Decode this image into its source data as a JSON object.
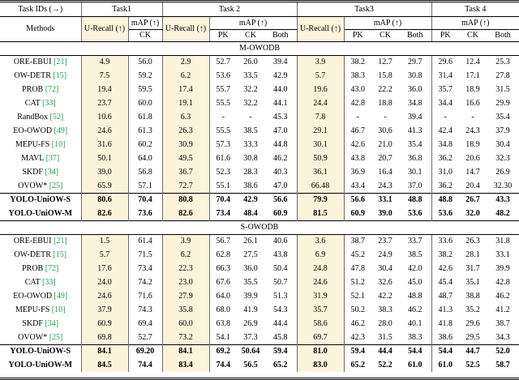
{
  "table": {
    "colors": {
      "highlight": "#fcf3db",
      "cite": "#1f9d4f"
    },
    "header": {
      "task_ids": "Task IDs (→)",
      "methods": "Methods",
      "tasks": [
        "Task1",
        "Task 2",
        "Task3",
        "Task 4"
      ],
      "u_recall": "U-Recall (↑)",
      "map": "mAP (↑)",
      "task1_sub": "CK",
      "subcols": [
        "PK",
        "CK",
        "Both"
      ]
    },
    "sections": [
      {
        "name": "M-OWODB",
        "rows": [
          {
            "method": "ORE-EBUI",
            "cite": "[21]",
            "bold": false,
            "rule_above": false,
            "values": [
              "4.9",
              "56.0",
              "2.9",
              "52.7",
              "26.0",
              "39.4",
              "3.9",
              "38.2",
              "12.7",
              "29.7",
              "29.6",
              "12.4",
              "25.3"
            ]
          },
          {
            "method": "OW-DETR",
            "cite": "[15]",
            "bold": false,
            "rule_above": false,
            "values": [
              "7.5",
              "59.2",
              "6.2",
              "53.6",
              "33.5",
              "42.9",
              "5.7",
              "38.3",
              "15.8",
              "30.8",
              "31.4",
              "17.1",
              "27.8"
            ]
          },
          {
            "method": "PROB",
            "cite": "[72]",
            "bold": false,
            "rule_above": false,
            "values": [
              "19.4",
              "59.5",
              "17.4",
              "55.7",
              "32.2",
              "44.0",
              "19.6",
              "43.0",
              "22.2",
              "36.0",
              "35.7",
              "18.9",
              "31.5"
            ]
          },
          {
            "method": "CAT",
            "cite": "[33]",
            "bold": false,
            "rule_above": false,
            "values": [
              "23.7",
              "60.0",
              "19.1",
              "55.5",
              "32.2",
              "44.1",
              "24.4",
              "42.8",
              "18.8",
              "34.8",
              "34.4",
              "16.6",
              "29.9"
            ]
          },
          {
            "method": "RandBox",
            "cite": "[52]",
            "bold": false,
            "rule_above": false,
            "values": [
              "10.6",
              "61.8",
              "6.3",
              "-",
              "-",
              "45.3",
              "7.8",
              "-",
              "-",
              "39.4",
              "-",
              "-",
              "35.4"
            ]
          },
          {
            "method": "EO-OWOD",
            "cite": "[49]",
            "bold": false,
            "rule_above": false,
            "values": [
              "24.6",
              "61.3",
              "26.3",
              "55.5",
              "38.5",
              "47.0",
              "29.1",
              "46.7",
              "30.6",
              "41.3",
              "42.4",
              "24.3",
              "37.9"
            ]
          },
          {
            "method": "MEPU-FS",
            "cite": "[10]",
            "bold": false,
            "rule_above": false,
            "values": [
              "31.6",
              "60.2",
              "30.9",
              "57.3",
              "33.3",
              "44.8",
              "30.1",
              "42.6",
              "21.0",
              "35.4",
              "34.8",
              "18.9",
              "30.4"
            ]
          },
          {
            "method": "MAVL",
            "cite": "[37]",
            "bold": false,
            "rule_above": false,
            "values": [
              "50.1",
              "64.0",
              "49.5",
              "61.6",
              "30.8",
              "46.2",
              "50.9",
              "43.8",
              "20.7",
              "36.8",
              "36.2",
              "20.6",
              "32.3"
            ]
          },
          {
            "method": "SKDF",
            "cite": "[34]",
            "bold": false,
            "rule_above": false,
            "values": [
              "39.0",
              "56.8",
              "36.7",
              "52.3",
              "28.3",
              "40.3",
              "36.1",
              "36.9",
              "16.4",
              "30.1",
              "31.0",
              "14.7",
              "26.9"
            ]
          },
          {
            "method": "OVOW*",
            "cite": "[25]",
            "bold": false,
            "rule_above": false,
            "values": [
              "65.9",
              "57.1",
              "72.7",
              "55.1",
              "38.6",
              "47.0",
              "66.48",
              "43.4",
              "24.3",
              "37.0",
              "36.2",
              "20.4",
              "32.30"
            ]
          },
          {
            "method": "YOLO-UniOW-S",
            "cite": "",
            "bold": true,
            "rule_above": true,
            "values": [
              "80.6",
              "70.4",
              "80.8",
              "70.4",
              "42.9",
              "56.6",
              "79.9",
              "56.6",
              "33.1",
              "48.8",
              "48.8",
              "26.7",
              "43.3"
            ]
          },
          {
            "method": "YOLO-UniOW-M",
            "cite": "",
            "bold": true,
            "rule_above": false,
            "values": [
              "82.6",
              "73.6",
              "82.6",
              "73.4",
              "48.4",
              "60.9",
              "81.5",
              "60.9",
              "39.0",
              "53.6",
              "53.6",
              "32.0",
              "48.2"
            ]
          }
        ]
      },
      {
        "name": "S-OWODB",
        "rows": [
          {
            "method": "ORE-EBUI",
            "cite": "[21]",
            "bold": false,
            "rule_above": false,
            "values": [
              "1.5",
              "61.4",
              "3.9",
              "56.7",
              "26.1",
              "40.6",
              "3.6",
              "38.7",
              "23.7",
              "33.7",
              "33.6",
              "26.3",
              "31.8"
            ]
          },
          {
            "method": "OW-DETR",
            "cite": "[15]",
            "bold": false,
            "rule_above": false,
            "values": [
              "5.7",
              "71.5",
              "6.2",
              "62.8",
              "27.5",
              "43.8",
              "6.9",
              "45.2",
              "24.9",
              "38.5",
              "38.2",
              "28.1",
              "33.1"
            ]
          },
          {
            "method": "PROB",
            "cite": "[72]",
            "bold": false,
            "rule_above": false,
            "values": [
              "17.6",
              "73.4",
              "22.3",
              "66.3",
              "36.0",
              "50.4",
              "24.8",
              "47.8",
              "30.4",
              "42.0",
              "42.6",
              "31.7",
              "39.9"
            ]
          },
          {
            "method": "CAT",
            "cite": "[33]",
            "bold": false,
            "rule_above": false,
            "values": [
              "24.0",
              "74.2",
              "23.0",
              "67.6",
              "35.5",
              "50.7",
              "24.6",
              "51.2",
              "32.6",
              "45.0",
              "45.4",
              "35.1",
              "42.8"
            ]
          },
          {
            "method": "EO-OWOD",
            "cite": "[49]",
            "bold": false,
            "rule_above": false,
            "values": [
              "24.6",
              "71.6",
              "27.9",
              "64.0",
              "39.9",
              "51.3",
              "31.9",
              "52.1",
              "42.2",
              "48.8",
              "48.7",
              "38.8",
              "46.2"
            ]
          },
          {
            "method": "MEPU-FS",
            "cite": "[10]",
            "bold": false,
            "rule_above": false,
            "values": [
              "37.9",
              "74.3",
              "35.8",
              "68.0",
              "41.9",
              "54.3",
              "35.7",
              "50.2",
              "38.3",
              "46.2",
              "41.3",
              "35.2",
              "41.2"
            ]
          },
          {
            "method": "SKDF",
            "cite": "[34]",
            "bold": false,
            "rule_above": false,
            "values": [
              "60.9",
              "69.4",
              "60.0",
              "63.8",
              "26.9",
              "44.4",
              "58.6",
              "46.2",
              "28.0",
              "40.1",
              "41.8",
              "29.6",
              "38.7"
            ]
          },
          {
            "method": "OVOW*",
            "cite": "[25]",
            "bold": false,
            "rule_above": false,
            "values": [
              "69.8",
              "52.7",
              "73.2",
              "54.1",
              "37.3",
              "45.8",
              "69.7",
              "42.3",
              "31.5",
              "38.3",
              "38.6",
              "29.5",
              "34.3"
            ]
          },
          {
            "method": "YOLO-UniOW-S",
            "cite": "",
            "bold": true,
            "rule_above": true,
            "values": [
              "84.1",
              "69.20",
              "84.1",
              "69.2",
              "50.64",
              "59.4",
              "81.0",
              "59.4",
              "44.4",
              "54.4",
              "54.4",
              "44.7",
              "52.0"
            ]
          },
          {
            "method": "YOLO-UniOW-M",
            "cite": "",
            "bold": true,
            "rule_above": false,
            "values": [
              "84.5",
              "74.4",
              "83.4",
              "74.4",
              "56.5",
              "65.2",
              "83.0",
              "65.2",
              "52.2",
              "61.0",
              "61.0",
              "52.5",
              "58.7"
            ]
          }
        ]
      }
    ]
  }
}
